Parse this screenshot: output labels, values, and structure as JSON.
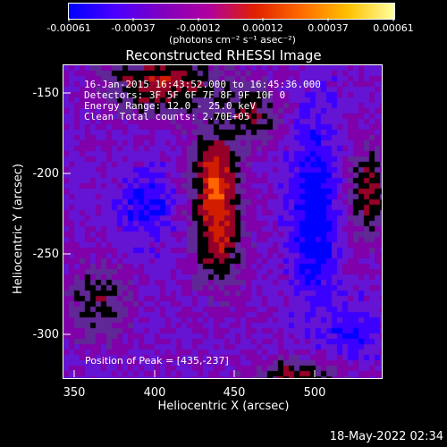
{
  "colorbar": {
    "ticks": [
      "-0.00061",
      "-0.00037",
      "-0.00012",
      "0.00012",
      "0.00037",
      "0.00061"
    ],
    "units_label": "(photons cm⁻² s⁻¹ asec⁻²)",
    "colors": [
      "#0000ff",
      "#4b00ff",
      "#8000c0",
      "#b000a0",
      "#e02000",
      "#ff6a00",
      "#ffc000",
      "#ffffa0"
    ]
  },
  "image": {
    "title": "Reconstructed RHESSI Image",
    "info_lines": [
      "16-Jan-2015 16:43:52.000 to 16:45:36.000",
      "Detectors: 3F 5F 6F 7F 8F 9F 10F 0",
      "Energy Range: 12.0 - 25.0 keV",
      "Clean    Total counts: 2.70E+05"
    ],
    "peak_label": "Position of Peak = [435,-237]"
  },
  "axes": {
    "x_label": "Heliocentric X (arcsec)",
    "y_label": "Heliocentric Y (arcsec)",
    "x_ticks": [
      "350",
      "400",
      "450",
      "500"
    ],
    "y_ticks": [
      "-150",
      "-200",
      "-250",
      "-300"
    ]
  },
  "footer": {
    "timestamp": "18-May-2022 02:34"
  }
}
